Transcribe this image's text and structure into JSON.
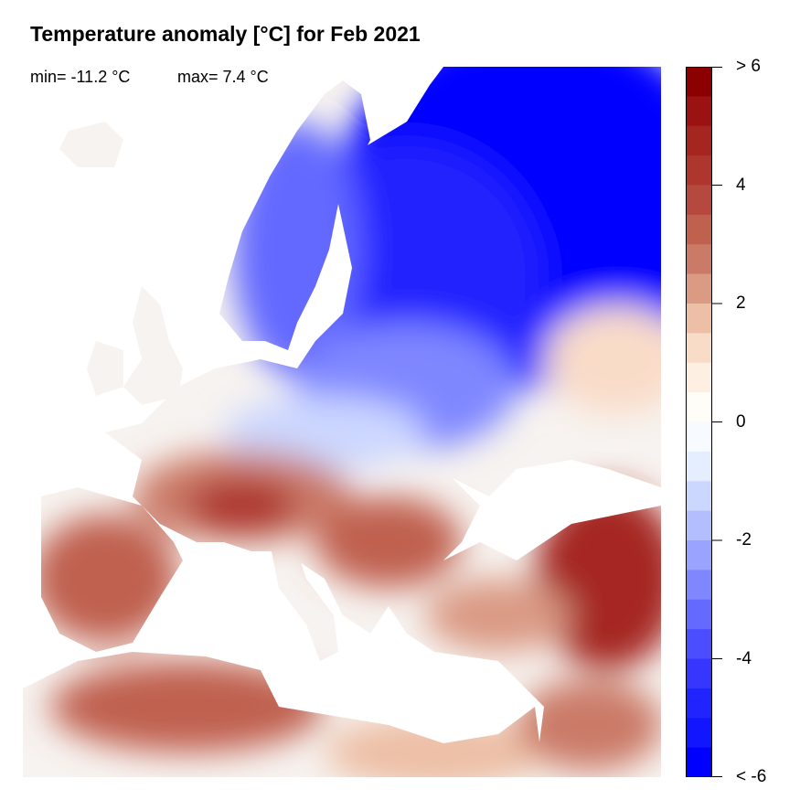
{
  "title": "Temperature anomaly [°C] for Feb 2021",
  "min_label": "min= -11.2 °C",
  "max_label": "max= 7.4 °C",
  "colorbar": {
    "range": [
      -6,
      6
    ],
    "step": 0.5,
    "tick_labels": [
      "> 6",
      "4",
      "2",
      "0",
      "-2",
      "-4",
      "< -6"
    ],
    "tick_values": [
      6,
      4,
      2,
      0,
      -2,
      -4,
      -6
    ],
    "colors": [
      "#8B0000",
      "#9A1212",
      "#A52620",
      "#AD362E",
      "#B5493F",
      "#C0604F",
      "#CB7A68",
      "#DA9A84",
      "#EDBFA6",
      "#F9DCC8",
      "#FDF0E3",
      "#FEFDF7",
      "#F7FBFF",
      "#E5EEFF",
      "#CCD7FF",
      "#B3BEFF",
      "#9AA3FF",
      "#7F87FF",
      "#6469FF",
      "#4A4EFF",
      "#3537FF",
      "#2224FF",
      "#1216FF",
      "#0000FF"
    ]
  }
}
